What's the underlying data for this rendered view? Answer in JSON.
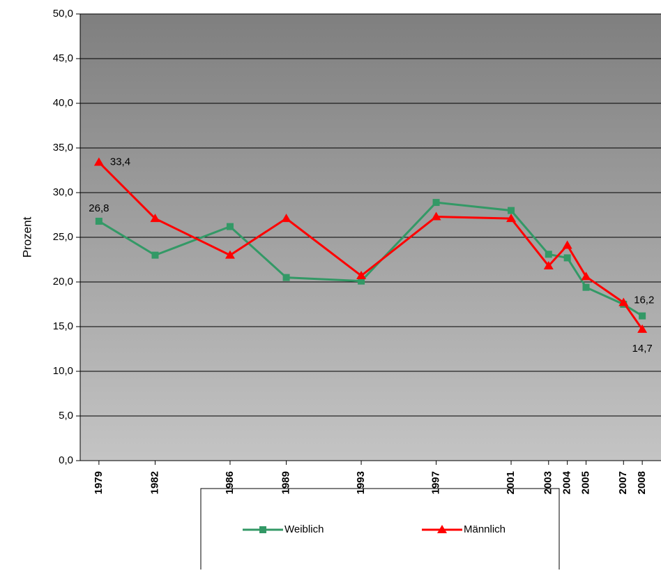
{
  "chart_data": {
    "type": "line",
    "y_label": "Prozent",
    "x": [
      1979,
      1982,
      1986,
      1989,
      1993,
      1997,
      2001,
      2003,
      2004,
      2005,
      2007,
      2008
    ],
    "xlim": [
      1978,
      2009
    ],
    "xticks": [
      1979,
      1982,
      1986,
      1989,
      1993,
      1997,
      2001,
      2003,
      2004,
      2005,
      2007,
      2008
    ],
    "ylim": [
      0,
      50
    ],
    "yticks": [
      {
        "value": 0,
        "label": "0,0"
      },
      {
        "value": 5,
        "label": "5,0"
      },
      {
        "value": 10,
        "label": "10,0"
      },
      {
        "value": 15,
        "label": "15,0"
      },
      {
        "value": 20,
        "label": "20,0"
      },
      {
        "value": 25,
        "label": "25,0"
      },
      {
        "value": 30,
        "label": "30,0"
      },
      {
        "value": 35,
        "label": "35,0"
      },
      {
        "value": 40,
        "label": "40,0"
      },
      {
        "value": 45,
        "label": "45,0"
      },
      {
        "value": 50,
        "label": "50,0"
      }
    ],
    "grid": true,
    "series": [
      {
        "name": "Weiblich",
        "color": "#339966",
        "marker": "square",
        "values": [
          26.8,
          23.0,
          26.2,
          20.5,
          20.1,
          28.9,
          28.0,
          23.1,
          22.7,
          19.4,
          17.5,
          16.2
        ],
        "value_labels": [
          "26,8",
          null,
          null,
          null,
          null,
          null,
          null,
          null,
          null,
          null,
          null,
          "16,2"
        ]
      },
      {
        "name": "Männlich",
        "color": "#ff0000",
        "marker": "triangle",
        "values": [
          33.4,
          27.1,
          23.0,
          27.1,
          20.7,
          27.3,
          27.1,
          21.8,
          24.1,
          20.6,
          17.7,
          14.7
        ],
        "value_labels": [
          "33,4",
          null,
          null,
          null,
          null,
          null,
          null,
          null,
          null,
          null,
          null,
          "14,7"
        ]
      }
    ]
  }
}
